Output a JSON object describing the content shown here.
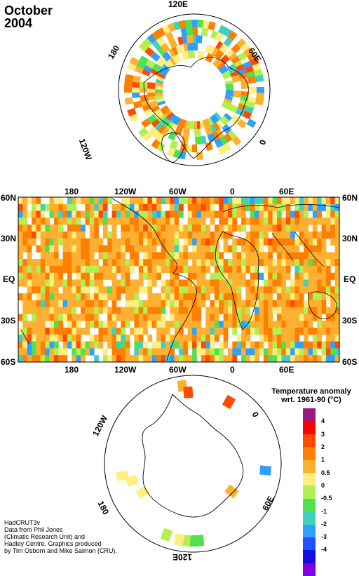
{
  "title": {
    "month": "October",
    "year": "2004"
  },
  "north_polar": {
    "labels": {
      "top": "120E",
      "upper_right": "60E",
      "right": "0",
      "upper_left": "180",
      "lower_left": "120W"
    }
  },
  "world_map": {
    "lon_labels": [
      "180",
      "120W",
      "60W",
      "0",
      "60E"
    ],
    "lat_labels": [
      "60N",
      "30N",
      "EQ",
      "30S",
      "60S"
    ]
  },
  "south_polar": {
    "labels": {
      "upper_left": "120W",
      "right": "0",
      "lower_left": "180",
      "lower_right": "60E",
      "bottom": "120E"
    }
  },
  "legend": {
    "title_line1": "Temperature anomaly",
    "title_line2": "wrt. 1961-90  (°C)",
    "colors": [
      "#9b1a80",
      "#ff0000",
      "#ff4a00",
      "#ff7f00",
      "#ffb030",
      "#ffee80",
      "#b0f050",
      "#50e050",
      "#40d0c0",
      "#30a0ff",
      "#2050ff",
      "#1010e0",
      "#8000e0"
    ],
    "ticks": [
      "4",
      "3",
      "2",
      "1",
      "0.5",
      "0",
      "-0.5",
      "-1",
      "-2",
      "-3",
      "-4"
    ]
  },
  "credit": {
    "line1": "HadCRUT3v",
    "line2": "Data from Phil Jones",
    "line3": "(Climatic Research Unit) and",
    "line4": "Hadley Centre.  Graphics produced",
    "line5": "by Tim Osborn and Mike Salmon (CRU)."
  }
}
